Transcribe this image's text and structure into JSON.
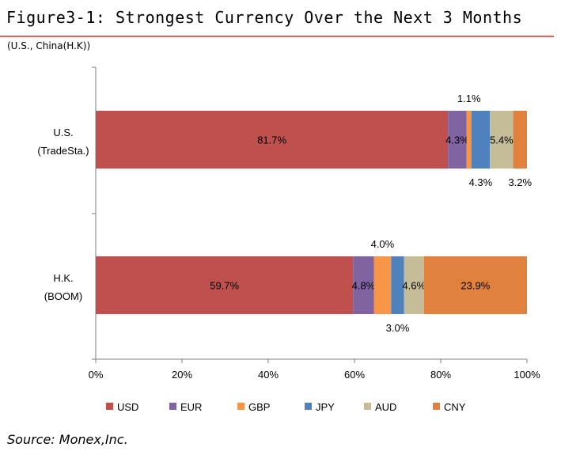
{
  "figure_title": "Figure3-1: Strongest Currency Over the Next 3 Months",
  "subtitle": "(U.S., China(H.K))",
  "source": "Source: Monex,Inc.",
  "chart_data": {
    "type": "bar",
    "orientation": "horizontal",
    "stacked": true,
    "categories": [
      {
        "line1": "U.S.",
        "line2": "(TradeSta.)"
      },
      {
        "line1": "H.K.",
        "line2": "(BOOM)"
      }
    ],
    "series": [
      {
        "name": "USD",
        "color": "#c0504d",
        "values": [
          81.7,
          59.7
        ],
        "labels": [
          "81.7%",
          "59.7%"
        ]
      },
      {
        "name": "EUR",
        "color": "#8064a2",
        "values": [
          4.3,
          4.8
        ],
        "labels": [
          "4.3%",
          "4.8%"
        ]
      },
      {
        "name": "GBP",
        "color": "#f79646",
        "values": [
          1.1,
          4.0
        ],
        "labels": [
          "1.1%",
          "4.0%"
        ]
      },
      {
        "name": "JPY",
        "color": "#4f81bd",
        "values": [
          4.3,
          3.0
        ],
        "labels": [
          "4.3%",
          "3.0%"
        ]
      },
      {
        "name": "AUD",
        "color": "#c4bd97",
        "values": [
          5.4,
          4.6
        ],
        "labels": [
          "5.4%",
          "4.6%"
        ]
      },
      {
        "name": "CNY",
        "color": "#e0823d",
        "values": [
          3.2,
          23.9
        ],
        "labels": [
          "3.2%",
          "23.9%"
        ]
      }
    ],
    "label_placement": [
      [
        "inside",
        "inside",
        "above",
        "below",
        "inside",
        "below"
      ],
      [
        "inside",
        "inside",
        "above",
        "below",
        "inside",
        "inside"
      ]
    ],
    "x_ticks": [
      "0%",
      "20%",
      "40%",
      "60%",
      "80%",
      "100%"
    ],
    "xlim": [
      0,
      100
    ],
    "legend_position": "bottom",
    "grid": false
  }
}
